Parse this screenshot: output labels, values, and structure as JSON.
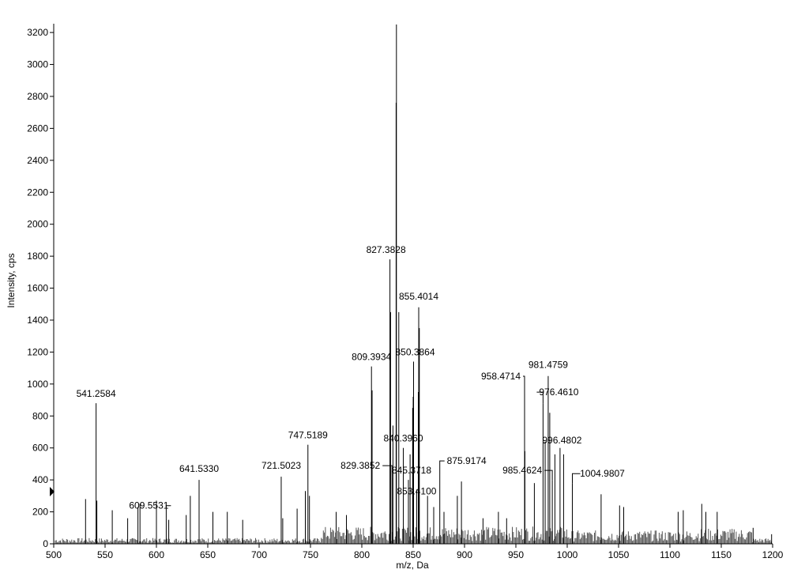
{
  "chart_data": {
    "type": "bar",
    "xlabel": "m/z, Da",
    "ylabel": "Intensity, cps",
    "xlim": [
      500,
      1200
    ],
    "ylim": [
      0,
      3250
    ],
    "xticks": [
      500,
      550,
      600,
      650,
      700,
      750,
      800,
      850,
      900,
      950,
      1000,
      1050,
      1100,
      1150,
      1200
    ],
    "yticks": [
      0,
      200,
      400,
      600,
      800,
      1000,
      1200,
      1400,
      1600,
      1800,
      2000,
      2200,
      2400,
      2600,
      2800,
      3000,
      3200
    ],
    "labeled_peaks": [
      {
        "mz": 541.2584,
        "intensity": 880,
        "label": "541.2584"
      },
      {
        "mz": 609.5531,
        "intensity": 160,
        "label": "609.5531"
      },
      {
        "mz": 641.533,
        "intensity": 400,
        "label": "641.5330"
      },
      {
        "mz": 721.5023,
        "intensity": 420,
        "label": "721.5023"
      },
      {
        "mz": 747.5189,
        "intensity": 620,
        "label": "747.5189"
      },
      {
        "mz": 809.3934,
        "intensity": 1110,
        "label": "809.3934"
      },
      {
        "mz": 827.3828,
        "intensity": 1780,
        "label": "827.3828"
      },
      {
        "mz": 829.3852,
        "intensity": 420,
        "label": "829.3852"
      },
      {
        "mz": 840.396,
        "intensity": 600,
        "label": "840.3960"
      },
      {
        "mz": 845.3718,
        "intensity": 400,
        "label": "845.3718"
      },
      {
        "mz": 850.3864,
        "intensity": 1140,
        "label": "850.3864"
      },
      {
        "mz": 853.41,
        "intensity": 340,
        "label": "853.4100"
      },
      {
        "mz": 855.4014,
        "intensity": 1480,
        "label": "855.4014"
      },
      {
        "mz": 875.9174,
        "intensity": 440,
        "label": "875.9174"
      },
      {
        "mz": 958.4714,
        "intensity": 940,
        "label": "958.4714"
      },
      {
        "mz": 976.461,
        "intensity": 880,
        "label": "976.4610"
      },
      {
        "mz": 981.4759,
        "intensity": 1050,
        "label": "981.4759"
      },
      {
        "mz": 985.4624,
        "intensity": 400,
        "label": "985.4624"
      },
      {
        "mz": 996.4802,
        "intensity": 560,
        "label": "996.4802"
      },
      {
        "mz": 1004.9807,
        "intensity": 380,
        "label": "1004.9807"
      }
    ],
    "unlabeled_peaks": [
      {
        "mz": 531.0,
        "intensity": 280
      },
      {
        "mz": 833.4,
        "intensity": 2760
      },
      {
        "mz": 833.7,
        "intensity": 3250
      },
      {
        "mz": 836.0,
        "intensity": 1450
      },
      {
        "mz": 830.3,
        "intensity": 740
      },
      {
        "mz": 849.5,
        "intensity": 850
      },
      {
        "mz": 850.0,
        "intensity": 920
      },
      {
        "mz": 847.0,
        "intensity": 560
      },
      {
        "mz": 856.0,
        "intensity": 1350
      },
      {
        "mz": 855.0,
        "intensity": 950
      },
      {
        "mz": 810.0,
        "intensity": 960
      },
      {
        "mz": 828.0,
        "intensity": 1450
      },
      {
        "mz": 958.8,
        "intensity": 580
      },
      {
        "mz": 983.0,
        "intensity": 820
      },
      {
        "mz": 978.5,
        "intensity": 640
      },
      {
        "mz": 988.0,
        "intensity": 560
      },
      {
        "mz": 993.0,
        "intensity": 600
      },
      {
        "mz": 968.0,
        "intensity": 380
      },
      {
        "mz": 1033.0,
        "intensity": 310
      },
      {
        "mz": 1051.0,
        "intensity": 240
      },
      {
        "mz": 1055.0,
        "intensity": 230
      },
      {
        "mz": 1108.0,
        "intensity": 200
      },
      {
        "mz": 1113.0,
        "intensity": 210
      },
      {
        "mz": 1131.0,
        "intensity": 250
      },
      {
        "mz": 1135.0,
        "intensity": 200
      },
      {
        "mz": 1146.0,
        "intensity": 200
      },
      {
        "mz": 1181.0,
        "intensity": 100
      },
      {
        "mz": 1199.0,
        "intensity": 60
      },
      {
        "mz": 897.0,
        "intensity": 390
      },
      {
        "mz": 893.0,
        "intensity": 300
      },
      {
        "mz": 880.0,
        "intensity": 200
      },
      {
        "mz": 870.0,
        "intensity": 230
      },
      {
        "mz": 864.0,
        "intensity": 300
      },
      {
        "mz": 933.0,
        "intensity": 200
      },
      {
        "mz": 918.0,
        "intensity": 160
      },
      {
        "mz": 941.0,
        "intensity": 160
      },
      {
        "mz": 785.0,
        "intensity": 180
      },
      {
        "mz": 775.0,
        "intensity": 200
      },
      {
        "mz": 749.0,
        "intensity": 300
      },
      {
        "mz": 745.0,
        "intensity": 330
      },
      {
        "mz": 737.0,
        "intensity": 220
      },
      {
        "mz": 723.0,
        "intensity": 160
      },
      {
        "mz": 684.0,
        "intensity": 150
      },
      {
        "mz": 669.0,
        "intensity": 200
      },
      {
        "mz": 655.0,
        "intensity": 200
      },
      {
        "mz": 633.0,
        "intensity": 300
      },
      {
        "mz": 629.0,
        "intensity": 180
      },
      {
        "mz": 612.0,
        "intensity": 150
      },
      {
        "mz": 600.0,
        "intensity": 270
      },
      {
        "mz": 584.0,
        "intensity": 250
      },
      {
        "mz": 582.0,
        "intensity": 230
      },
      {
        "mz": 572.0,
        "intensity": 160
      },
      {
        "mz": 557.0,
        "intensity": 210
      },
      {
        "mz": 542.0,
        "intensity": 270
      }
    ]
  }
}
